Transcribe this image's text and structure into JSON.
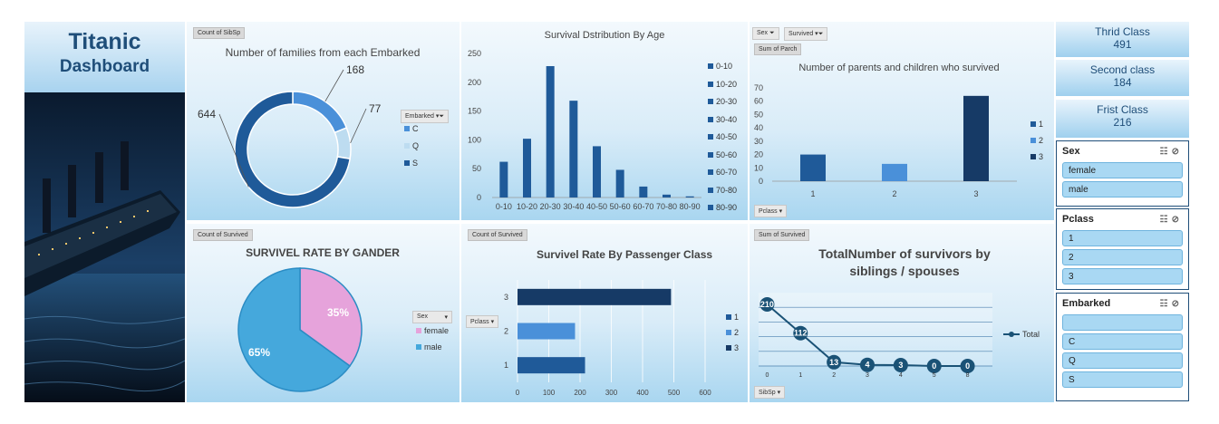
{
  "dashboard": {
    "title_line1": "Titanic",
    "title_line2": "Dashboard"
  },
  "colors": {
    "dark_blue": "#1f5a99",
    "mid_blue": "#4a90d9",
    "light_blue": "#bddcf0",
    "navy": "#163a66",
    "pink": "#e6a3db",
    "sky": "#45a8dc",
    "line": "#1a5276"
  },
  "charts": {
    "embarked": {
      "pivot_label": "Count of SibSp",
      "filter_label": "Embarked",
      "chart_data": {
        "type": "pie",
        "title": "Number of families from each Embarked",
        "categories": [
          "C",
          "Q",
          "S"
        ],
        "values": [
          168,
          77,
          644
        ],
        "data_labels": [
          "168",
          "77",
          "644"
        ]
      }
    },
    "age": {
      "chart_data": {
        "type": "bar",
        "title": "Survival Dstribution By Age",
        "categories": [
          "0-10",
          "10-20",
          "20-30",
          "30-40",
          "40-50",
          "50-60",
          "60-70",
          "70-80",
          "80-90"
        ],
        "values": [
          62,
          102,
          228,
          168,
          89,
          48,
          19,
          5,
          2
        ],
        "ylim": [
          0,
          250
        ],
        "yticks": [
          "0",
          "50",
          "100",
          "150",
          "200",
          "250"
        ],
        "legend": [
          "0-10",
          "10-20",
          "20-30",
          "30-40",
          "40-50",
          "50-60",
          "60-70",
          "70-80",
          "80-90"
        ]
      }
    },
    "parch": {
      "filter_sex": "Sex",
      "filter_survived": "Survived",
      "pivot_label": "Sum of Parch",
      "axis_filter": "Pclass",
      "chart_data": {
        "type": "bar",
        "title": "Number of parents and children who survived",
        "categories": [
          "1",
          "2",
          "3"
        ],
        "values": [
          20,
          13,
          64
        ],
        "ylim": [
          0,
          70
        ],
        "yticks": [
          "0",
          "10",
          "20",
          "30",
          "40",
          "50",
          "60",
          "70"
        ],
        "legend": [
          "1",
          "2",
          "3"
        ]
      }
    },
    "gender": {
      "pivot_label": "Count of Survived",
      "filter_label": "Sex",
      "chart_data": {
        "type": "pie",
        "title": "SURVIVEL RATE BY GANDER",
        "categories": [
          "female",
          "male"
        ],
        "values": [
          35,
          65
        ],
        "data_labels": [
          "35%",
          "65%"
        ]
      }
    },
    "pclass": {
      "pivot_label": "Count of Survived",
      "filter_label": "Pclass",
      "chart_data": {
        "type": "bar",
        "title": "Survivel Rate By Passenger Class",
        "categories": [
          "1",
          "2",
          "3"
        ],
        "values": [
          216,
          184,
          491
        ],
        "xlim": [
          0,
          600
        ],
        "xticks": [
          "0",
          "100",
          "200",
          "300",
          "400",
          "500",
          "600"
        ],
        "legend": [
          "1",
          "2",
          "3"
        ]
      }
    },
    "sibsp": {
      "pivot_label": "Sum of Survived",
      "axis_filter": "SibSp",
      "chart_data": {
        "type": "line",
        "title_line1": "TotalNumber of survivors by",
        "title_line2": "siblings / spouses",
        "categories": [
          "0",
          "1",
          "2",
          "3",
          "4",
          "5",
          "8"
        ],
        "values": [
          210,
          112,
          13,
          4,
          3,
          0,
          0
        ],
        "data_labels": [
          "210",
          "112",
          "13",
          "4",
          "3",
          "0",
          "0"
        ],
        "series_name": "Total",
        "ylim": [
          0,
          250
        ]
      }
    }
  },
  "kpis": [
    {
      "label": "Thrid Class",
      "value": "491"
    },
    {
      "label": "Second class",
      "value": "184"
    },
    {
      "label": "Frist Class",
      "value": "216"
    }
  ],
  "slicers": {
    "sex": {
      "title": "Sex",
      "items": [
        "female",
        "male"
      ]
    },
    "pclass": {
      "title": "Pclass",
      "items": [
        "1",
        "2",
        "3"
      ]
    },
    "embarked": {
      "title": "Embarked",
      "items": [
        "",
        "C",
        "Q",
        "S"
      ]
    }
  }
}
